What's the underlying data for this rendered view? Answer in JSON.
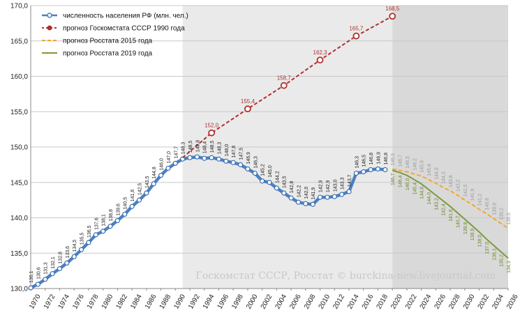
{
  "chart_data": {
    "type": "line",
    "xlim": [
      1970,
      2036
    ],
    "ylim": [
      130,
      170
    ],
    "yticks": [
      "130,0",
      "135,0",
      "140,0",
      "145,0",
      "150,0",
      "155,0",
      "160,0",
      "165,0",
      "170,0"
    ],
    "xticks": [
      "1970",
      "1972",
      "1974",
      "1976",
      "1978",
      "1980",
      "1982",
      "1984",
      "1986",
      "1988",
      "1990",
      "1992",
      "1994",
      "1996",
      "1998",
      "2000",
      "2002",
      "2004",
      "2006",
      "2008",
      "2010",
      "2012",
      "2014",
      "2016",
      "2018",
      "2020",
      "2022",
      "2024",
      "2026",
      "2028",
      "2030",
      "2032",
      "2034",
      "2036"
    ],
    "grid": true,
    "legend_position": "top-left",
    "shaded_regions": [
      {
        "from": 1991,
        "to": 2020,
        "color": "#eaeaea"
      },
      {
        "from": 2020,
        "to": 2036,
        "color": "#d9d9d9"
      }
    ],
    "series": [
      {
        "name": "численность населения РФ (млн. чел.)",
        "color": "#4a80c4",
        "x": [
          1970,
          1971,
          1972,
          1973,
          1974,
          1975,
          1976,
          1977,
          1978,
          1979,
          1980,
          1981,
          1982,
          1983,
          1984,
          1985,
          1986,
          1987,
          1988,
          1989,
          1990,
          1991,
          1992,
          1993,
          1994,
          1995,
          1996,
          1997,
          1998,
          1999,
          2000,
          2001,
          2002,
          2003,
          2004,
          2005,
          2006,
          2007,
          2008,
          2009,
          2010,
          2011,
          2012,
          2013,
          2014,
          2015,
          2016,
          2017,
          2018,
          2019
        ],
        "values": [
          130.1,
          130.6,
          131.3,
          132.1,
          132.8,
          133.6,
          134.5,
          135.5,
          136.5,
          137.6,
          138.1,
          138.8,
          139.6,
          140.5,
          141.6,
          142.5,
          143.5,
          144.8,
          146.0,
          147.0,
          147.7,
          148.3,
          148.5,
          148.6,
          148.4,
          148.5,
          148.3,
          148.0,
          147.8,
          147.5,
          146.9,
          146.3,
          145.2,
          145.0,
          144.2,
          143.5,
          142.8,
          142.2,
          142.0,
          141.9,
          142.9,
          142.9,
          143.0,
          143.3,
          143.7,
          146.3,
          146.5,
          146.8,
          146.9,
          146.8
        ],
        "labels": [
          "130,1",
          "130,6",
          "131,3",
          "132,1",
          "132,8",
          "133,6",
          "134,5",
          "135,5",
          "136,5",
          "137,6",
          "138,1",
          "138,8",
          "139,6",
          "140,5",
          "141,6",
          "142,5",
          "143,5",
          "144,8",
          "146,0",
          "147,0",
          "147,7",
          "148,3",
          "148,5",
          "148,6",
          "148,4",
          "148,5",
          "148,3",
          "148,0",
          "147,8",
          "147,5",
          "146,9",
          "146,3",
          "145,2",
          "145,0",
          "144,2",
          "143,5",
          "142,8",
          "142,2",
          "142,0",
          "141,9",
          "142,9",
          "142,9",
          "143,0",
          "143,3",
          "143,7",
          "146,3",
          "146,5",
          "146,8",
          "146,9",
          "146,8"
        ]
      },
      {
        "name": "прогноз Госкомстата СССР 1990 года",
        "color": "#b03030",
        "x": [
          1991,
          1995,
          2000,
          2005,
          2010,
          2015,
          2020
        ],
        "values": [
          148.5,
          152.0,
          155.4,
          158.7,
          162.3,
          165.7,
          168.5
        ],
        "labels": [
          "",
          "152,0",
          "155,4",
          "158,7",
          "162,3",
          "165,7",
          "168,5"
        ]
      },
      {
        "name": "прогноз Росстата 2015 года",
        "color": "#f0a830",
        "x": [
          2020,
          2021,
          2022,
          2023,
          2024,
          2025,
          2026,
          2027,
          2028,
          2029,
          2030,
          2031,
          2032,
          2033,
          2034,
          2035,
          2036
        ],
        "values": [
          146.9,
          146.7,
          146.5,
          146.2,
          145.9,
          145.4,
          144.9,
          144.3,
          143.8,
          143.2,
          142.5,
          141.9,
          141.2,
          140.6,
          139.9,
          139.2,
          138.5
        ],
        "labels": [
          "146,9",
          "146,7",
          "146,5",
          "146,2",
          "145,9",
          "145,4",
          "144,9",
          "144,3",
          "143,8",
          "143,2",
          "142,5",
          "141,9",
          "141,2",
          "140,6",
          "139,9",
          "139,2",
          "138,5"
        ]
      },
      {
        "name": "прогноз Росстата 2019 года",
        "color": "#7a9a3a",
        "x": [
          2020,
          2021,
          2022,
          2023,
          2024,
          2025,
          2026,
          2027,
          2028,
          2029,
          2030,
          2031,
          2032,
          2033,
          2034,
          2035,
          2036
        ],
        "values": [
          146.7,
          146.4,
          146.0,
          145.4,
          144.8,
          144.0,
          143.2,
          142.4,
          141.6,
          140.7,
          139.8,
          138.9,
          138.0,
          137.0,
          136.1,
          135.2,
          134.3
        ],
        "labels": [
          "146,7",
          "146,4",
          "146,0",
          "145,4",
          "144,8",
          "144,0",
          "143,2",
          "142,4",
          "141,6",
          "140,7",
          "139,8",
          "138,9",
          "138,0",
          "137,0",
          "136,1",
          "135,2",
          "134,3"
        ]
      }
    ],
    "annotations": [
      "Госкомстат СССР, Росстат © burckina-new.livejournal.com"
    ]
  }
}
